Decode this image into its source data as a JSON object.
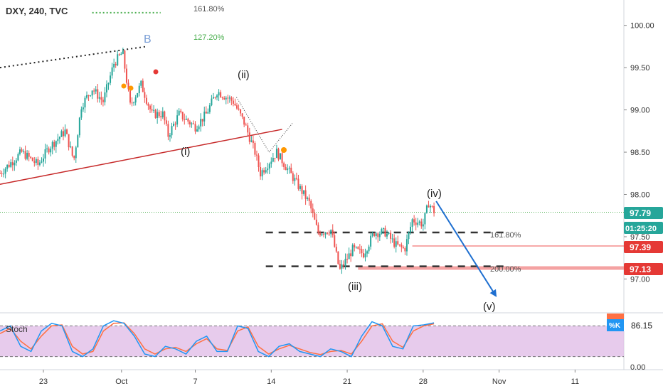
{
  "header": {
    "symbol_label": "DXY, 240, TVC"
  },
  "colors": {
    "up": "#26a69a",
    "down": "#ef5350",
    "fib_dot": "#555555",
    "fib_green": "#4caf50",
    "trend_red": "#c62828",
    "arrow_blue": "#1e6fd0",
    "last_price_bg": "#26a69a",
    "level_bg": "#e53935",
    "stoch_bg": "#e1bee7",
    "stoch_k": "#2196f3",
    "stoch_d": "#ff7043"
  },
  "price_axis": {
    "ticks": [
      "100.00",
      "99.50",
      "99.00",
      "98.50",
      "98.00",
      "97.50",
      "97.00"
    ],
    "range": [
      96.6,
      100.3
    ]
  },
  "time_axis": {
    "ticks": [
      {
        "label": "23",
        "day": 23
      },
      {
        "label": "Oct",
        "day": 30.2
      },
      {
        "label": "7",
        "day": 37
      },
      {
        "label": "14",
        "day": 44
      },
      {
        "label": "21",
        "day": 51
      },
      {
        "label": "28",
        "day": 58
      },
      {
        "label": "Nov",
        "day": 65
      },
      {
        "label": "11",
        "day": 72
      }
    ],
    "range": [
      19,
      76.5
    ]
  },
  "price_tags": {
    "last": "97.79",
    "countdown": "01:25:20",
    "level_a": "97.39",
    "level_b": "97.13"
  },
  "annotations": {
    "fib_161_top": "161.80%",
    "fib_127_top": "127.20%",
    "wave_b": "B",
    "wave_i": "(i)",
    "wave_ii": "(ii)",
    "wave_iii": "(iii)",
    "wave_iv": "(iv)",
    "wave_v": "(v)",
    "fib_161_bottom": "161.80%",
    "fib_200_bottom": "200.00%"
  },
  "stoch": {
    "label": "Stoch",
    "k_label": "%K",
    "k_value": "86.15",
    "ticks": [
      "0.00"
    ]
  },
  "chart_data": {
    "type": "candlestick",
    "symbol": "DXY",
    "interval": "240",
    "levels": {
      "last_price": 97.79,
      "level_a": 97.39,
      "level_b": 97.13,
      "fib_161_80": 97.55,
      "fib_200_00": 97.15,
      "fib_top_161_80": 100.48,
      "fib_top_127_20": 100.15
    },
    "price_path": [
      {
        "day": 19.0,
        "price": 98.25
      },
      {
        "day": 21.0,
        "price": 98.5
      },
      {
        "day": 22.5,
        "price": 98.35
      },
      {
        "day": 23.5,
        "price": 98.55
      },
      {
        "day": 25.0,
        "price": 98.75
      },
      {
        "day": 25.8,
        "price": 98.4
      },
      {
        "day": 26.5,
        "price": 99.05
      },
      {
        "day": 27.5,
        "price": 99.25
      },
      {
        "day": 28.5,
        "price": 99.1
      },
      {
        "day": 29.5,
        "price": 99.55
      },
      {
        "day": 30.3,
        "price": 99.68
      },
      {
        "day": 31.0,
        "price": 99.05
      },
      {
        "day": 32.0,
        "price": 99.3
      },
      {
        "day": 33.0,
        "price": 98.95
      },
      {
        "day": 34.0,
        "price": 98.95
      },
      {
        "day": 34.5,
        "price": 98.7
      },
      {
        "day": 35.5,
        "price": 98.95
      },
      {
        "day": 37.0,
        "price": 98.8
      },
      {
        "day": 38.0,
        "price": 98.95
      },
      {
        "day": 39.0,
        "price": 99.22
      },
      {
        "day": 40.5,
        "price": 99.1
      },
      {
        "day": 41.5,
        "price": 98.85
      },
      {
        "day": 42.5,
        "price": 98.5
      },
      {
        "day": 43.0,
        "price": 98.25
      },
      {
        "day": 44.5,
        "price": 98.5
      },
      {
        "day": 45.5,
        "price": 98.3
      },
      {
        "day": 46.5,
        "price": 98.1
      },
      {
        "day": 47.5,
        "price": 97.9
      },
      {
        "day": 48.3,
        "price": 97.55
      },
      {
        "day": 49.5,
        "price": 97.58
      },
      {
        "day": 50.3,
        "price": 97.1
      },
      {
        "day": 51.5,
        "price": 97.35
      },
      {
        "day": 52.5,
        "price": 97.3
      },
      {
        "day": 53.5,
        "price": 97.55
      },
      {
        "day": 54.5,
        "price": 97.55
      },
      {
        "day": 55.5,
        "price": 97.4
      },
      {
        "day": 56.3,
        "price": 97.35
      },
      {
        "day": 57.0,
        "price": 97.7
      },
      {
        "day": 58.0,
        "price": 97.65
      },
      {
        "day": 58.5,
        "price": 97.9
      },
      {
        "day": 59.0,
        "price": 97.8
      }
    ],
    "trendlines": [
      {
        "name": "upper-dotted",
        "from": {
          "day": 19.0,
          "price": 99.5
        },
        "to": {
          "day": 32.5,
          "price": 99.75
        }
      },
      {
        "name": "lower-support",
        "from": {
          "day": 19.0,
          "price": 98.12
        },
        "to": {
          "day": 45.0,
          "price": 98.77
        }
      },
      {
        "name": "projection",
        "from": {
          "day": 59.2,
          "price": 97.92
        },
        "to": {
          "day": 64.7,
          "price": 96.8
        }
      }
    ],
    "stochastic": {
      "k": [
        70,
        80,
        40,
        30,
        70,
        85,
        80,
        30,
        20,
        35,
        80,
        90,
        85,
        60,
        25,
        20,
        40,
        35,
        25,
        50,
        60,
        30,
        30,
        80,
        75,
        30,
        20,
        40,
        45,
        30,
        25,
        20,
        35,
        30,
        20,
        60,
        88,
        80,
        40,
        35,
        80,
        82,
        86
      ],
      "d": [
        65,
        75,
        50,
        35,
        60,
        80,
        82,
        40,
        25,
        30,
        70,
        85,
        86,
        65,
        35,
        25,
        35,
        38,
        30,
        45,
        55,
        35,
        32,
        70,
        78,
        40,
        25,
        35,
        42,
        35,
        28,
        24,
        30,
        32,
        25,
        50,
        80,
        84,
        50,
        38,
        70,
        80,
        84
      ],
      "upper_band": 80,
      "lower_band": 20,
      "range": [
        0,
        100
      ]
    }
  }
}
